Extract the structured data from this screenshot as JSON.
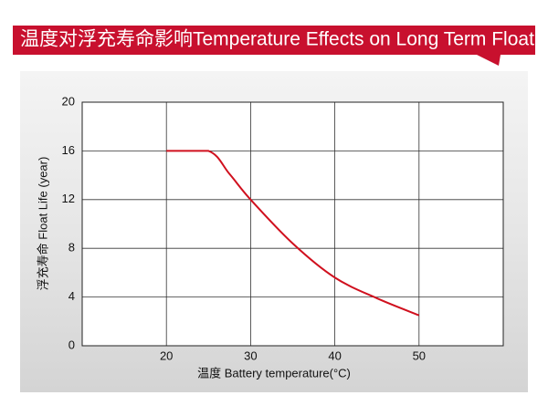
{
  "chart_data": {
    "type": "line",
    "title": "温度对浮充寿命影响Temperature Effects on Long Term Float Life",
    "x_label": "温度  Battery temperature(°C)",
    "y_label": "浮充寿命 Float Life (year)",
    "x": [
      20,
      25,
      27.5,
      30,
      35,
      40,
      45,
      50
    ],
    "series": [
      {
        "name": "Float Life",
        "color": "#d0101e",
        "values": [
          16,
          16,
          14.1,
          12,
          8.4,
          5.6,
          3.9,
          2.5
        ]
      }
    ],
    "xlim": [
      10,
      60
    ],
    "xticks": [
      20,
      30,
      40,
      50
    ],
    "ylim": [
      0,
      20
    ],
    "yticks": [
      0,
      4,
      8,
      12,
      16,
      20
    ],
    "grid": true
  }
}
